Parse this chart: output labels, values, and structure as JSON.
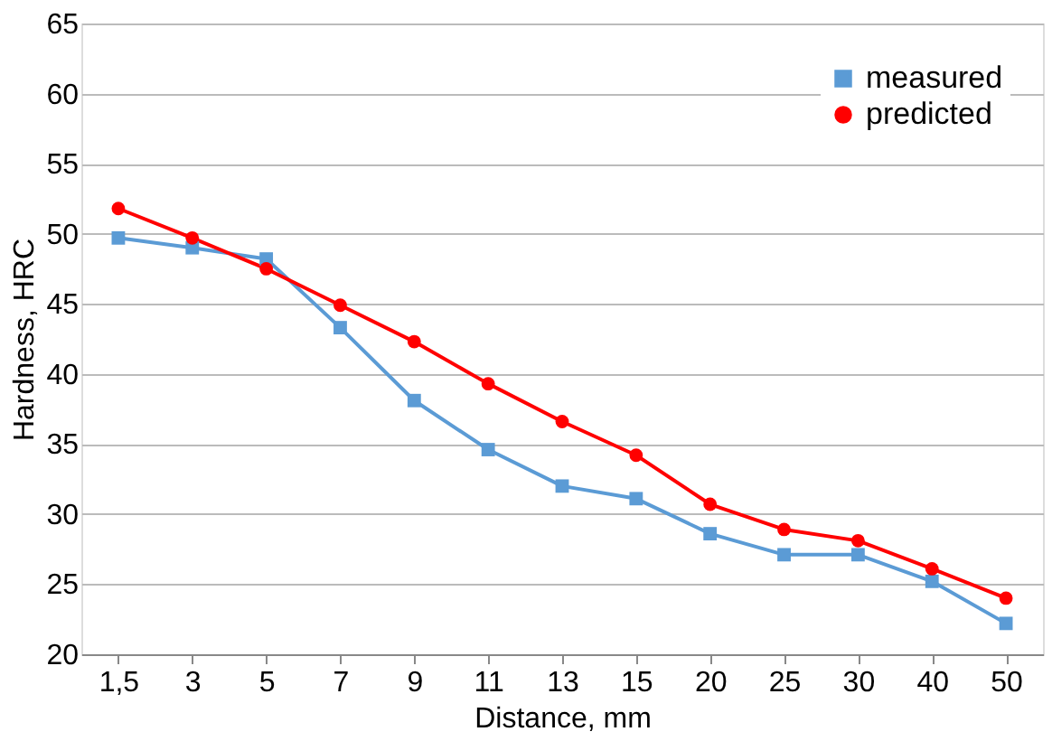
{
  "chart_data": {
    "type": "line",
    "xlabel": "Distance, mm",
    "ylabel": "Hardness, HRC",
    "categories": [
      "1,5",
      "3",
      "5",
      "7",
      "9",
      "11",
      "13",
      "15",
      "20",
      "25",
      "30",
      "40",
      "50"
    ],
    "series": [
      {
        "name": "measured",
        "color": "#5b9bd5",
        "marker": "square",
        "values": [
          49.7,
          49.0,
          48.2,
          43.3,
          38.1,
          34.6,
          32.0,
          31.1,
          28.6,
          27.1,
          27.1,
          25.2,
          22.2
        ]
      },
      {
        "name": "predicted",
        "color": "#ff0000",
        "marker": "circle",
        "values": [
          51.8,
          49.7,
          47.5,
          44.9,
          42.3,
          39.3,
          36.6,
          34.2,
          30.7,
          28.9,
          28.1,
          26.1,
          24.0
        ]
      }
    ],
    "ylim": [
      20,
      65
    ],
    "yticks": [
      20,
      25,
      30,
      35,
      40,
      45,
      50,
      55,
      60,
      65
    ],
    "grid": "y",
    "legend": "top right",
    "line_style": "solid"
  }
}
